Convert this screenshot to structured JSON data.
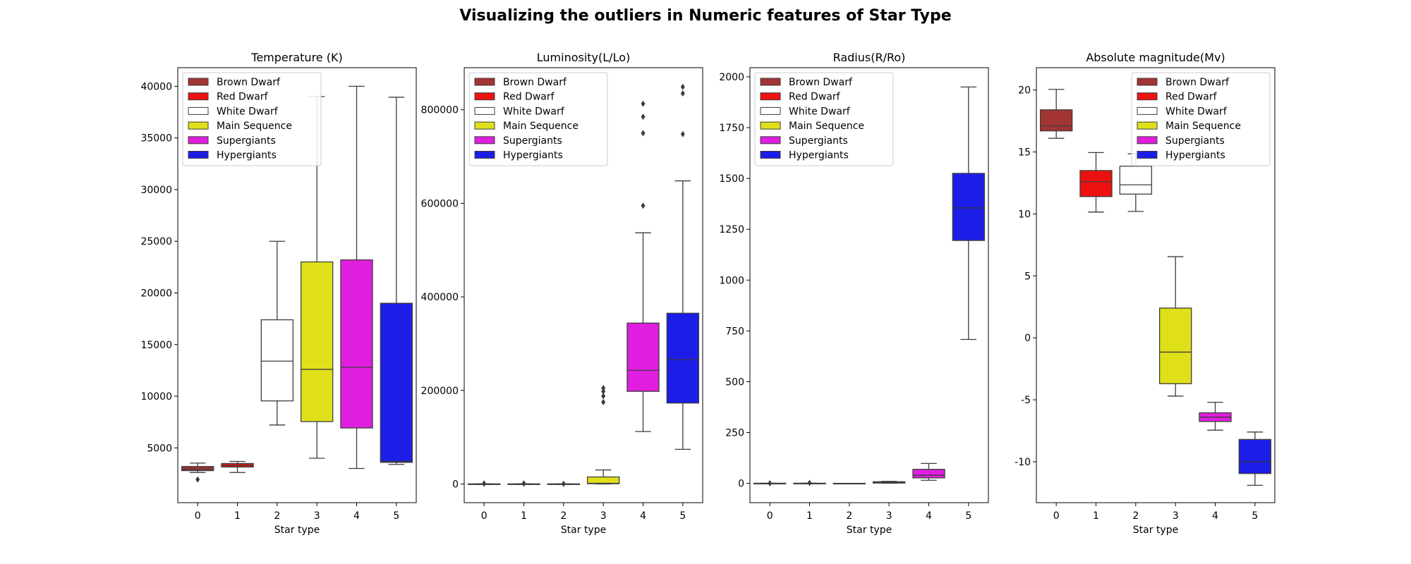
{
  "figure": {
    "title": "Visualizing the outliers in Numeric features of Star Type"
  },
  "legend": {
    "entries": [
      {
        "label": "Brown Dwarf",
        "color": "#a23434"
      },
      {
        "label": "Red Dwarf",
        "color": "#ee1111"
      },
      {
        "label": "White Dwarf",
        "color": "#ffffff"
      },
      {
        "label": "Main Sequence",
        "color": "#e0e01a"
      },
      {
        "label": "Supergiants",
        "color": "#e01ee0"
      },
      {
        "label": "Hypergiants",
        "color": "#1d1de8"
      }
    ]
  },
  "chart_data": [
    {
      "type": "box",
      "title": "Temperature (K)",
      "xlabel": "Star type",
      "ylabel": "",
      "categories": [
        "0",
        "1",
        "2",
        "3",
        "4",
        "5"
      ],
      "ylim": [
        -300,
        41800
      ],
      "yticks": [
        5000,
        10000,
        15000,
        20000,
        25000,
        30000,
        35000,
        40000
      ],
      "legend_position": "upper left",
      "boxes": [
        {
          "whislo": 2620,
          "q1": 2800,
          "med": 2950,
          "q3": 3200,
          "whishi": 3530,
          "fliers": [
            1940
          ]
        },
        {
          "whislo": 2620,
          "q1": 3150,
          "med": 3310,
          "q3": 3490,
          "whishi": 3690,
          "fliers": []
        },
        {
          "whislo": 7220,
          "q1": 9550,
          "med": 13400,
          "q3": 17400,
          "whishi": 25000,
          "fliers": []
        },
        {
          "whislo": 4000,
          "q1": 7550,
          "med": 12600,
          "q3": 23000,
          "whishi": 39000,
          "fliers": []
        },
        {
          "whislo": 3010,
          "q1": 6930,
          "med": 12800,
          "q3": 23200,
          "whishi": 40000,
          "fliers": []
        },
        {
          "whislo": 3400,
          "q1": 3600,
          "med": 3700,
          "q3": 19000,
          "whishi": 38940,
          "fliers": []
        }
      ]
    },
    {
      "type": "box",
      "title": "Luminosity(L/Lo)",
      "xlabel": "Star type",
      "ylabel": "",
      "categories": [
        "0",
        "1",
        "2",
        "3",
        "4",
        "5"
      ],
      "ylim": [
        -40000,
        890000
      ],
      "yticks": [
        0,
        200000,
        400000,
        600000,
        800000
      ],
      "legend_position": "upper left",
      "boxes": [
        {
          "whislo": 0,
          "q1": 0,
          "med": 0,
          "q3": 0,
          "whishi": 0,
          "fliers": [
            500,
            800
          ]
        },
        {
          "whislo": 0,
          "q1": 0,
          "med": 0,
          "q3": 0,
          "whishi": 0,
          "fliers": [
            700,
            1000
          ]
        },
        {
          "whislo": 0,
          "q1": 0,
          "med": 0,
          "q3": 0,
          "whishi": 0,
          "fliers": [
            400
          ]
        },
        {
          "whislo": 0,
          "q1": 500,
          "med": 1500,
          "q3": 15000,
          "whishi": 30000,
          "fliers": [
            175000,
            188000,
            198000,
            205000
          ]
        },
        {
          "whislo": 112000,
          "q1": 198000,
          "med": 243000,
          "q3": 344000,
          "whishi": 537000,
          "fliers": [
            595000,
            750000,
            785000,
            813000
          ]
        },
        {
          "whislo": 74000,
          "q1": 173000,
          "med": 266000,
          "q3": 365000,
          "whishi": 648000,
          "fliers": [
            748000,
            835000,
            849000
          ]
        }
      ]
    },
    {
      "type": "box",
      "title": "Radius(R/Ro)",
      "xlabel": "Star type",
      "ylabel": "",
      "categories": [
        "0",
        "1",
        "2",
        "3",
        "4",
        "5"
      ],
      "ylim": [
        -95,
        2045
      ],
      "yticks": [
        0,
        250,
        500,
        750,
        1000,
        1250,
        1500,
        1750,
        2000
      ],
      "legend_position": "upper left",
      "boxes": [
        {
          "whislo": 0.08,
          "q1": 0.1,
          "med": 0.12,
          "q3": 0.15,
          "whishi": 0.2,
          "fliers": [
            0.5
          ]
        },
        {
          "whislo": 0.1,
          "q1": 0.2,
          "med": 0.25,
          "q3": 0.35,
          "whishi": 0.6,
          "fliers": [
            1.9
          ]
        },
        {
          "whislo": 0.005,
          "q1": 0.009,
          "med": 0.01,
          "q3": 0.012,
          "whishi": 0.015,
          "fliers": []
        },
        {
          "whislo": 0.8,
          "q1": 1.5,
          "med": 4,
          "q3": 8,
          "whishi": 10,
          "fliers": []
        },
        {
          "whislo": 15,
          "q1": 27,
          "med": 40,
          "q3": 69,
          "whishi": 98,
          "fliers": []
        },
        {
          "whislo": 708,
          "q1": 1195,
          "med": 1355,
          "q3": 1525,
          "whishi": 1950,
          "fliers": []
        }
      ]
    },
    {
      "type": "box",
      "title": "Absolute magnitude(Mv)",
      "xlabel": "Star type",
      "ylabel": "",
      "categories": [
        "0",
        "1",
        "2",
        "3",
        "4",
        "5"
      ],
      "ylim": [
        -13.3,
        21.8
      ],
      "yticks": [
        -10,
        -5,
        0,
        5,
        10,
        15,
        20
      ],
      "legend_position": "upper right",
      "boxes": [
        {
          "whislo": 16.1,
          "q1": 16.7,
          "med": 17.1,
          "q3": 18.4,
          "whishi": 20.05,
          "fliers": []
        },
        {
          "whislo": 10.15,
          "q1": 11.4,
          "med": 12.6,
          "q3": 13.5,
          "whishi": 14.95,
          "fliers": []
        },
        {
          "whislo": 10.2,
          "q1": 11.6,
          "med": 12.35,
          "q3": 13.85,
          "whishi": 14.85,
          "fliers": []
        },
        {
          "whislo": -4.7,
          "q1": -3.7,
          "med": -1.15,
          "q3": 2.4,
          "whishi": 6.55,
          "fliers": []
        },
        {
          "whislo": -7.45,
          "q1": -6.75,
          "med": -6.4,
          "q3": -6.05,
          "whishi": -5.2,
          "fliers": []
        },
        {
          "whislo": -11.9,
          "q1": -10.95,
          "med": -10,
          "q3": -8.2,
          "whishi": -7.6,
          "fliers": []
        }
      ]
    }
  ]
}
